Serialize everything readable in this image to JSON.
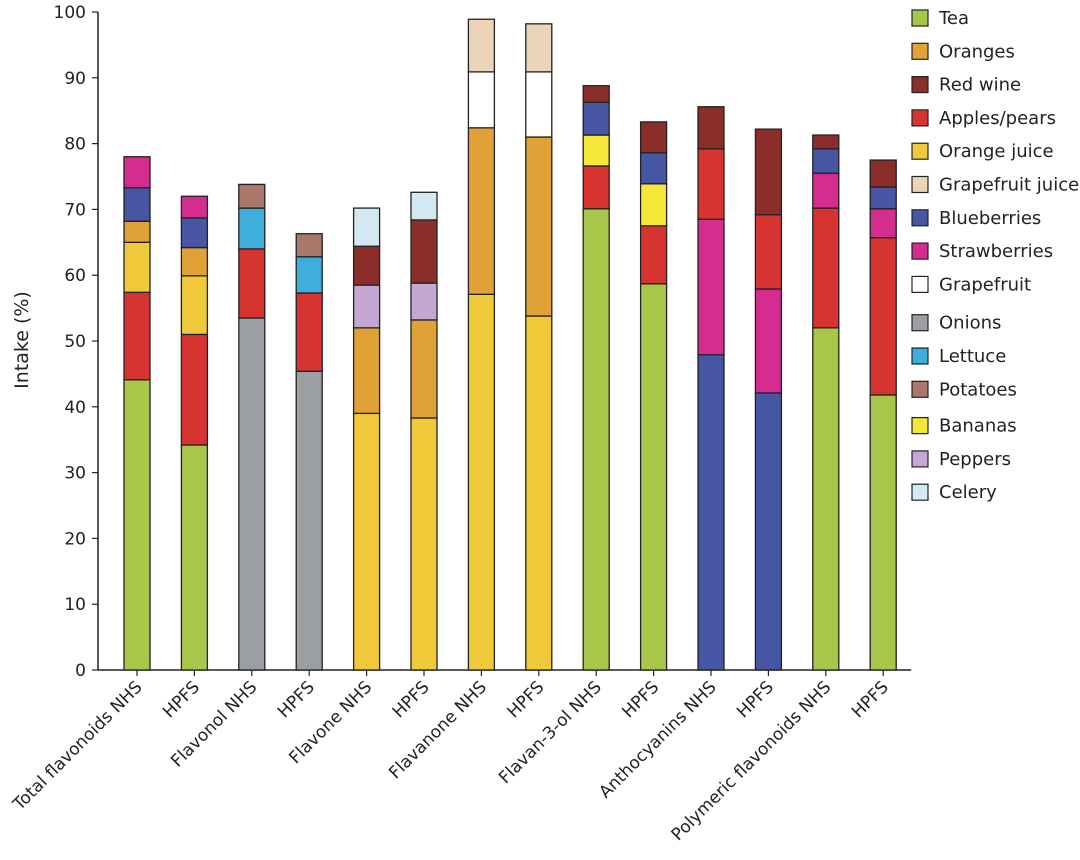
{
  "chart_data": {
    "type": "bar",
    "stacked": true,
    "title": "",
    "xlabel": "",
    "ylabel": "Intake (%)",
    "ylim": [
      0,
      100
    ],
    "yticks": [
      0,
      10,
      20,
      30,
      40,
      50,
      60,
      70,
      80,
      90,
      100
    ],
    "grid": false,
    "legend_position": "right",
    "categories": [
      "Total flavonoids NHS",
      "HPFS",
      "Flavonol NHS",
      "HPFS",
      "Flavone NHS",
      "HPFS",
      "Flavanone NHS",
      "HPFS",
      "Flavan-3-ol NHS",
      "HPFS",
      "Anthocyanins NHS",
      "HPFS",
      "Polymeric flavonoids NHS",
      "HPFS"
    ],
    "series": [
      {
        "name": "Tea",
        "color": "#a8c64a",
        "values": [
          44.1,
          34.2,
          0,
          0,
          0,
          0,
          0,
          0,
          70.1,
          58.7,
          0,
          0,
          52.0,
          41.8
        ]
      },
      {
        "name": "Oranges",
        "color": "#e0a236",
        "values": [
          3.2,
          4.3,
          0,
          0,
          13.0,
          14.9,
          25.3,
          27.2,
          0,
          0,
          0,
          0,
          0,
          0
        ]
      },
      {
        "name": "Red wine",
        "color": "#8b2e2a",
        "values": [
          0,
          0,
          0,
          0,
          5.9,
          9.6,
          0,
          0,
          2.5,
          4.7,
          6.4,
          13.0,
          2.1,
          4.1
        ]
      },
      {
        "name": "Apples/pears",
        "color": "#d63331",
        "values": [
          13.3,
          16.8,
          10.5,
          11.9,
          0,
          0,
          0,
          0,
          6.5,
          8.8,
          10.7,
          11.3,
          18.2,
          23.9
        ]
      },
      {
        "name": "Orange juice",
        "color": "#f0c93b",
        "values": [
          7.6,
          8.9,
          0,
          0,
          39.0,
          38.3,
          57.1,
          53.8,
          0,
          0,
          0,
          0,
          0,
          0
        ]
      },
      {
        "name": "Grapefruit juice",
        "color": "#ecd4b8",
        "values": [
          0,
          0,
          0,
          0,
          0,
          0,
          8.0,
          7.3,
          0,
          0,
          0,
          0,
          0,
          0
        ]
      },
      {
        "name": "Blueberries",
        "color": "#4656a3",
        "values": [
          5.1,
          4.5,
          0,
          0,
          0,
          0,
          0,
          0,
          5.0,
          4.7,
          47.9,
          42.1,
          3.7,
          3.3
        ]
      },
      {
        "name": "Strawberries",
        "color": "#d42c8f",
        "values": [
          4.7,
          3.3,
          0,
          0,
          0,
          0,
          0,
          0,
          0,
          0,
          20.6,
          15.8,
          5.3,
          4.4
        ]
      },
      {
        "name": "Grapefruit",
        "color": "#ffffff",
        "values": [
          0,
          0,
          0,
          0,
          0,
          0,
          8.5,
          9.9,
          0,
          0,
          0,
          0,
          0,
          0
        ]
      },
      {
        "name": "Onions",
        "color": "#9b9fa3",
        "values": [
          0,
          0,
          53.5,
          45.4,
          0,
          0,
          0,
          0,
          0,
          0,
          0,
          0,
          0,
          0
        ]
      },
      {
        "name": "Lettuce",
        "color": "#3eaedc",
        "values": [
          0,
          0,
          6.2,
          5.5,
          0,
          0,
          0,
          0,
          0,
          0,
          0,
          0,
          0,
          0
        ]
      },
      {
        "name": "Potatoes",
        "color": "#a9786a",
        "values": [
          0,
          0,
          3.6,
          3.5,
          0,
          0,
          0,
          0,
          0,
          0,
          0,
          0,
          0,
          0
        ]
      },
      {
        "name": "Bananas",
        "color": "#f5e63a",
        "values": [
          0,
          0,
          0,
          0,
          0,
          0,
          0,
          0,
          4.7,
          6.4,
          0,
          0,
          0,
          0
        ]
      },
      {
        "name": "Peppers",
        "color": "#c5a7d3",
        "values": [
          0,
          0,
          0,
          0,
          6.5,
          5.6,
          0,
          0,
          0,
          0,
          0,
          0,
          0,
          0
        ]
      },
      {
        "name": "Celery",
        "color": "#d3e8f1",
        "values": [
          0,
          0,
          0,
          0,
          5.8,
          4.2,
          0,
          0,
          0,
          0,
          0,
          0,
          0,
          0
        ]
      }
    ],
    "stack_order": [
      [
        "Tea",
        "Apples/pears",
        "Orange juice",
        "Oranges",
        "Blueberries",
        "Strawberries"
      ],
      [
        "Tea",
        "Apples/pears",
        "Orange juice",
        "Oranges",
        "Blueberries",
        "Strawberries"
      ],
      [
        "Onions",
        "Apples/pears",
        "Lettuce",
        "Potatoes"
      ],
      [
        "Onions",
        "Apples/pears",
        "Lettuce",
        "Potatoes"
      ],
      [
        "Orange juice",
        "Oranges",
        "Peppers",
        "Red wine",
        "Celery"
      ],
      [
        "Orange juice",
        "Oranges",
        "Peppers",
        "Red wine",
        "Celery"
      ],
      [
        "Orange juice",
        "Oranges",
        "Grapefruit",
        "Grapefruit juice"
      ],
      [
        "Orange juice",
        "Oranges",
        "Grapefruit",
        "Grapefruit juice"
      ],
      [
        "Tea",
        "Apples/pears",
        "Bananas",
        "Blueberries",
        "Red wine"
      ],
      [
        "Tea",
        "Apples/pears",
        "Bananas",
        "Blueberries",
        "Red wine"
      ],
      [
        "Blueberries",
        "Strawberries",
        "Apples/pears",
        "Red wine"
      ],
      [
        "Blueberries",
        "Strawberries",
        "Apples/pears",
        "Red wine"
      ],
      [
        "Tea",
        "Apples/pears",
        "Strawberries",
        "Blueberries",
        "Red wine"
      ],
      [
        "Tea",
        "Apples/pears",
        "Strawberries",
        "Blueberries",
        "Red wine"
      ]
    ]
  }
}
